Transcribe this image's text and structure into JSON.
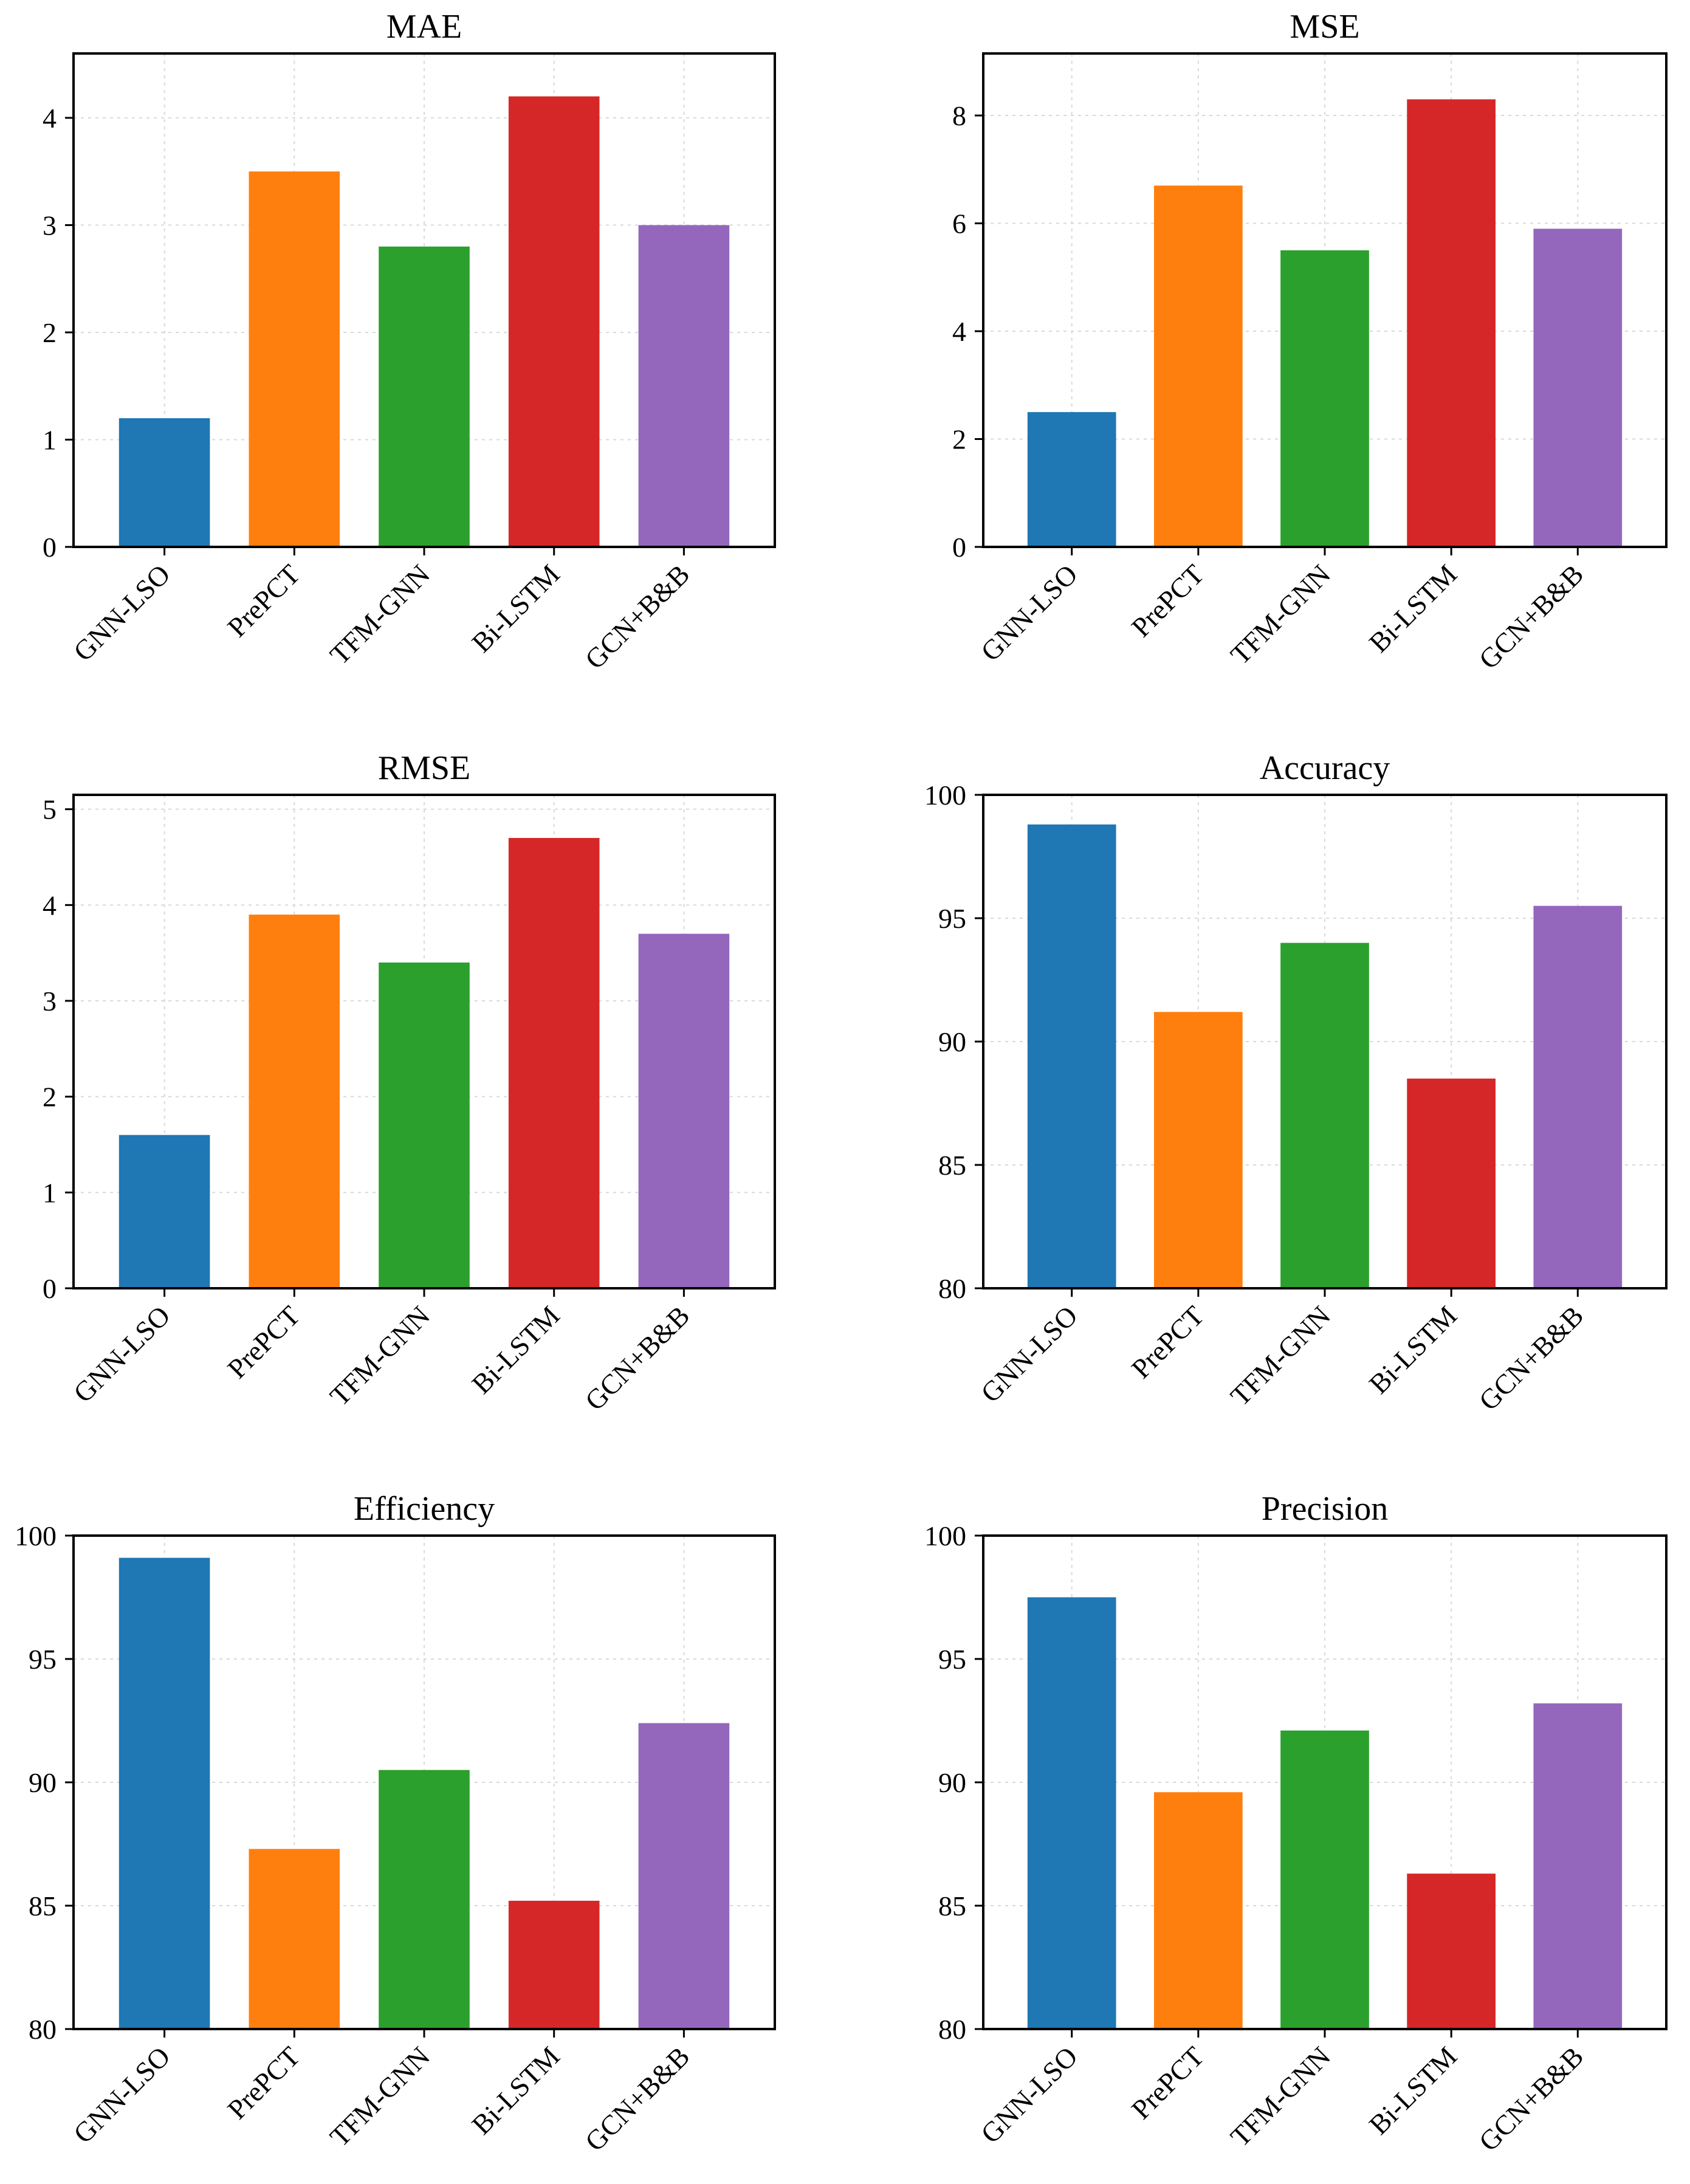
{
  "figure": {
    "colors": [
      "#1f77b4",
      "#ff7f0e",
      "#2ca02c",
      "#d62728",
      "#9467bd"
    ]
  },
  "chart_data": [
    {
      "type": "bar",
      "title": "MAE",
      "categories": [
        "GNN-LSO",
        "PrePCT",
        "TFM-GNN",
        "Bi-LSTM",
        "GCN+B&B"
      ],
      "values": [
        1.2,
        3.5,
        2.8,
        4.2,
        3.0
      ],
      "xlabel": "",
      "ylabel": "",
      "ylim": [
        0,
        4.6
      ],
      "yticks": [
        0,
        1,
        2,
        3,
        4
      ],
      "grid": true,
      "legend": "none"
    },
    {
      "type": "bar",
      "title": "MSE",
      "categories": [
        "GNN-LSO",
        "PrePCT",
        "TFM-GNN",
        "Bi-LSTM",
        "GCN+B&B"
      ],
      "values": [
        2.5,
        6.7,
        5.5,
        8.3,
        5.9
      ],
      "xlabel": "",
      "ylabel": "",
      "ylim": [
        0,
        9.15
      ],
      "yticks": [
        0,
        2,
        4,
        6,
        8
      ],
      "grid": true,
      "legend": "none"
    },
    {
      "type": "bar",
      "title": "RMSE",
      "categories": [
        "GNN-LSO",
        "PrePCT",
        "TFM-GNN",
        "Bi-LSTM",
        "GCN+B&B"
      ],
      "values": [
        1.6,
        3.9,
        3.4,
        4.7,
        3.7
      ],
      "xlabel": "",
      "ylabel": "",
      "ylim": [
        0,
        5.15
      ],
      "yticks": [
        0,
        1,
        2,
        3,
        4,
        5
      ],
      "grid": true,
      "legend": "none"
    },
    {
      "type": "bar",
      "title": "Accuracy",
      "categories": [
        "GNN-LSO",
        "PrePCT",
        "TFM-GNN",
        "Bi-LSTM",
        "GCN+B&B"
      ],
      "values": [
        98.8,
        91.2,
        94.0,
        88.5,
        95.5
      ],
      "xlabel": "",
      "ylabel": "",
      "ylim": [
        80,
        100
      ],
      "yticks": [
        80,
        85,
        90,
        95,
        100
      ],
      "grid": true,
      "legend": "none"
    },
    {
      "type": "bar",
      "title": "Efficiency",
      "categories": [
        "GNN-LSO",
        "PrePCT",
        "TFM-GNN",
        "Bi-LSTM",
        "GCN+B&B"
      ],
      "values": [
        99.1,
        87.3,
        90.5,
        85.2,
        92.4
      ],
      "xlabel": "",
      "ylabel": "",
      "ylim": [
        80,
        100
      ],
      "yticks": [
        80,
        85,
        90,
        95,
        100
      ],
      "grid": true,
      "legend": "none"
    },
    {
      "type": "bar",
      "title": "Precision",
      "categories": [
        "GNN-LSO",
        "PrePCT",
        "TFM-GNN",
        "Bi-LSTM",
        "GCN+B&B"
      ],
      "values": [
        97.5,
        89.6,
        92.1,
        86.3,
        93.2
      ],
      "xlabel": "",
      "ylabel": "",
      "ylim": [
        80,
        100
      ],
      "yticks": [
        80,
        85,
        90,
        95,
        100
      ],
      "grid": true,
      "legend": "none"
    }
  ]
}
